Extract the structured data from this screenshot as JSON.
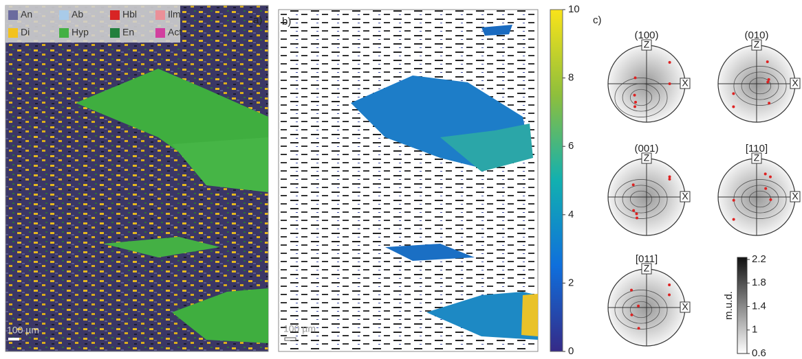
{
  "panel_a": {
    "label": "a)",
    "scale_bar": "100 µm",
    "legend": [
      {
        "name": "An",
        "color": "#6b6b9e"
      },
      {
        "name": "Ab",
        "color": "#a9cbe9"
      },
      {
        "name": "Hbl",
        "color": "#d82424"
      },
      {
        "name": "Ilm",
        "color": "#ea9098"
      },
      {
        "name": "Di",
        "color": "#f2c21e"
      },
      {
        "name": "Hyp",
        "color": "#44b044"
      },
      {
        "name": "En",
        "color": "#217f3c"
      },
      {
        "name": "Act",
        "color": "#d2409e"
      }
    ]
  },
  "panel_b": {
    "label": "b)",
    "scale_bar": "100 µm",
    "colorbar": {
      "lim": [
        0,
        10
      ],
      "ticks": [
        0,
        2,
        4,
        6,
        8,
        10
      ]
    }
  },
  "panel_c": {
    "label": "c)",
    "pole_figures": [
      {
        "title": "(100)",
        "z": "Z",
        "x": "X"
      },
      {
        "title": "(010)",
        "z": "Z",
        "x": "X"
      },
      {
        "title": "(001)",
        "z": "Z",
        "x": "X"
      },
      {
        "title": "[110]",
        "z": "Z",
        "x": "X"
      },
      {
        "title": "[011]",
        "z": "Z",
        "x": "X"
      }
    ],
    "colorbar": {
      "label": "m.u.d.",
      "lim": [
        0.6,
        2.2
      ],
      "ticks": [
        2.2,
        1.8,
        1.4,
        1,
        0.6
      ]
    }
  }
}
